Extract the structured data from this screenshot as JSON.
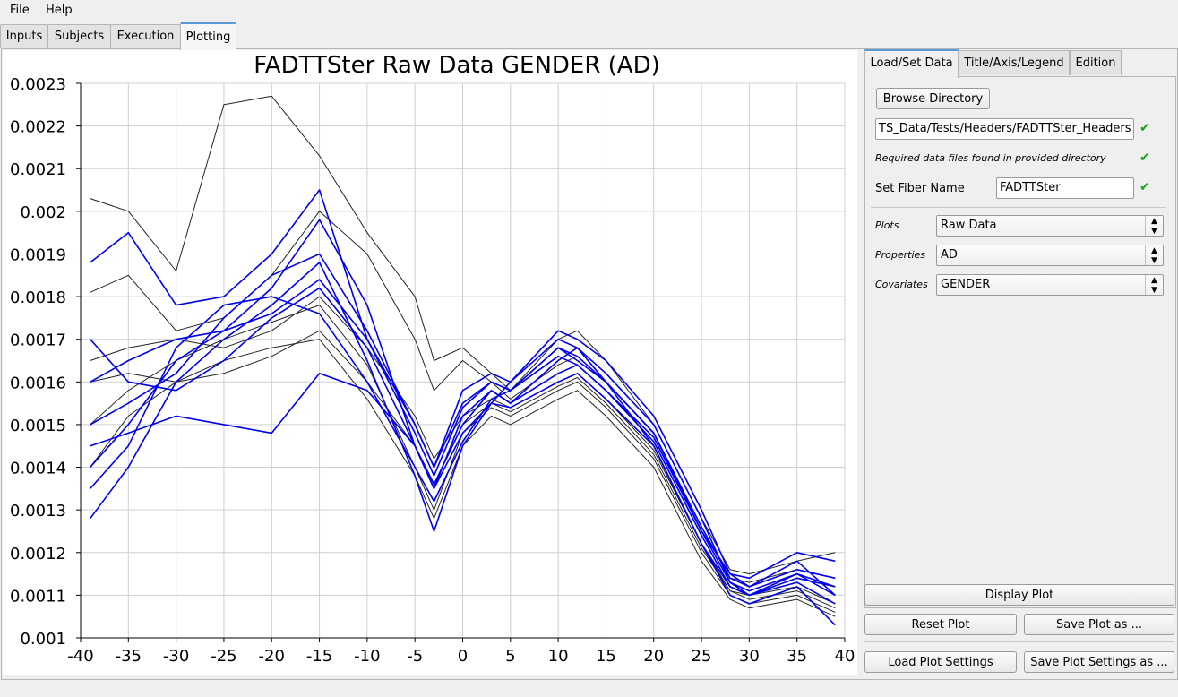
{
  "menubar": {
    "file": "File",
    "help": "Help"
  },
  "main_tabs": [
    "Inputs",
    "Subjects",
    "Execution",
    "Plotting"
  ],
  "right_tabs": [
    "Load/Set Data",
    "Title/Axis/Legend",
    "Edition"
  ],
  "load_panel": {
    "browse_button": "Browse Directory",
    "directory_value": "TS_Data/Tests/Headers/FADTTSter_Headers",
    "required_found_text": "Required data files found in provided directory",
    "fiber_name_label": "Set Fiber Name",
    "fiber_name_value": "FADTTSter",
    "plots_label": "Plots",
    "plots_value": "Raw Data",
    "properties_label": "Properties",
    "properties_value": "AD",
    "covariates_label": "Covariates",
    "covariates_value": "GENDER"
  },
  "buttons": {
    "display_plot": "Display Plot",
    "reset_plot": "Reset Plot",
    "save_plot_as": "Save Plot as ...",
    "load_plot_settings": "Load Plot Settings",
    "save_plot_settings_as": "Save Plot Settings as ..."
  },
  "colors": {
    "tab_accent": "#5b9bd5",
    "check_green": "#1aa31a",
    "series_blue": "#0000ee",
    "series_black": "#222222"
  },
  "chart_data": {
    "type": "line",
    "title": "FADTTSter Raw Data GENDER (AD)",
    "xlabel": "",
    "ylabel": "",
    "xlim": [
      -40,
      40
    ],
    "ylim": [
      0.001,
      0.0023
    ],
    "x_ticks": [
      "-40",
      "-35",
      "-30",
      "-25",
      "-20",
      "-15",
      "-10",
      "-5",
      "0",
      "5",
      "10",
      "15",
      "20",
      "25",
      "30",
      "35",
      "40"
    ],
    "y_ticks": [
      "0.001",
      "0.0011",
      "0.0012",
      "0.0013",
      "0.0014",
      "0.0015",
      "0.0016",
      "0.0017",
      "0.0018",
      "0.0019",
      "0.002",
      "0.0021",
      "0.0022",
      "0.0023"
    ],
    "grid": true,
    "x": [
      -39,
      -35,
      -30,
      -25,
      -20,
      -15,
      -10,
      -5,
      -3,
      0,
      3,
      5,
      10,
      12,
      15,
      20,
      25,
      28,
      30,
      35,
      39
    ],
    "series": [
      {
        "group": 1,
        "color": "#0000ee",
        "values": [
          0.00188,
          0.00195,
          0.00178,
          0.0018,
          0.0019,
          0.00205,
          0.0017,
          0.0015,
          0.0014,
          0.00155,
          0.0016,
          0.00158,
          0.00168,
          0.00165,
          0.0016,
          0.00148,
          0.00125,
          0.00115,
          0.00112,
          0.00118,
          0.0011
        ]
      },
      {
        "group": 1,
        "color": "#0000ee",
        "values": [
          0.0014,
          0.0015,
          0.00165,
          0.00172,
          0.00182,
          0.00198,
          0.00178,
          0.00145,
          0.00135,
          0.00152,
          0.00158,
          0.00155,
          0.00165,
          0.00168,
          0.00162,
          0.0015,
          0.00128,
          0.00113,
          0.0011,
          0.00115,
          0.00112
        ]
      },
      {
        "group": 1,
        "color": "#0000ee",
        "values": [
          0.00128,
          0.0014,
          0.0016,
          0.0017,
          0.00178,
          0.00188,
          0.00165,
          0.00138,
          0.00125,
          0.00145,
          0.00155,
          0.0016,
          0.0017,
          0.00168,
          0.0016,
          0.00145,
          0.00122,
          0.0011,
          0.00108,
          0.00112,
          0.00103
        ]
      },
      {
        "group": 1,
        "color": "#0000ee",
        "values": [
          0.0015,
          0.00155,
          0.00162,
          0.00175,
          0.00185,
          0.0019,
          0.00172,
          0.0015,
          0.0014,
          0.00158,
          0.00162,
          0.0016,
          0.00172,
          0.0017,
          0.00165,
          0.00152,
          0.0013,
          0.00115,
          0.00114,
          0.0012,
          0.00118
        ]
      },
      {
        "group": 1,
        "color": "#0000ee",
        "values": [
          0.0017,
          0.0016,
          0.00158,
          0.00165,
          0.00175,
          0.00182,
          0.00168,
          0.00145,
          0.00136,
          0.0015,
          0.00158,
          0.00155,
          0.00162,
          0.00164,
          0.00158,
          0.00146,
          0.00124,
          0.00112,
          0.0011,
          0.00113,
          0.00108
        ]
      },
      {
        "group": 1,
        "color": "#0000ee",
        "values": [
          0.00145,
          0.00148,
          0.00152,
          0.0015,
          0.00148,
          0.00162,
          0.00158,
          0.00145,
          0.00135,
          0.00148,
          0.00155,
          0.00154,
          0.0016,
          0.00162,
          0.00156,
          0.00145,
          0.00122,
          0.00112,
          0.0011,
          0.00114,
          0.00112
        ]
      },
      {
        "group": 1,
        "color": "#0000ee",
        "values": [
          0.00135,
          0.00145,
          0.00168,
          0.00178,
          0.0018,
          0.00176,
          0.0016,
          0.0014,
          0.00132,
          0.00146,
          0.00156,
          0.00158,
          0.00168,
          0.00166,
          0.0016,
          0.00148,
          0.00126,
          0.00114,
          0.00112,
          0.00116,
          0.00114
        ]
      },
      {
        "group": 1,
        "color": "#0000ee",
        "values": [
          0.0016,
          0.00165,
          0.0017,
          0.00172,
          0.00176,
          0.00184,
          0.0017,
          0.00148,
          0.00138,
          0.00154,
          0.0016,
          0.00158,
          0.00166,
          0.00164,
          0.00158,
          0.00147,
          0.00125,
          0.00113,
          0.00111,
          0.00115,
          0.0011
        ]
      },
      {
        "group": 2,
        "color": "#222222",
        "values": [
          0.00203,
          0.002,
          0.00186,
          0.00225,
          0.00227,
          0.00213,
          0.00195,
          0.0018,
          0.00165,
          0.00168,
          0.00162,
          0.00158,
          0.0017,
          0.00172,
          0.00165,
          0.0015,
          0.00128,
          0.00116,
          0.00115,
          0.00118,
          0.0012
        ]
      },
      {
        "group": 2,
        "color": "#222222",
        "values": [
          0.00181,
          0.00185,
          0.00172,
          0.00175,
          0.00185,
          0.002,
          0.0019,
          0.0017,
          0.00158,
          0.00165,
          0.0016,
          0.00156,
          0.00164,
          0.00166,
          0.0016,
          0.00148,
          0.00126,
          0.00114,
          0.00113,
          0.00116,
          0.00114
        ]
      },
      {
        "group": 2,
        "color": "#222222",
        "values": [
          0.00165,
          0.00168,
          0.0017,
          0.00168,
          0.00172,
          0.0018,
          0.00168,
          0.00152,
          0.00142,
          0.00152,
          0.00156,
          0.00154,
          0.0016,
          0.00162,
          0.00156,
          0.00144,
          0.00122,
          0.00111,
          0.0011,
          0.00112,
          0.00108
        ]
      },
      {
        "group": 2,
        "color": "#222222",
        "values": [
          0.0015,
          0.00158,
          0.00165,
          0.0017,
          0.00174,
          0.00178,
          0.00164,
          0.0014,
          0.0013,
          0.00148,
          0.00154,
          0.00152,
          0.00158,
          0.0016,
          0.00154,
          0.00142,
          0.0012,
          0.0011,
          0.00108,
          0.0011,
          0.00106
        ]
      },
      {
        "group": 2,
        "color": "#222222",
        "values": [
          0.0016,
          0.00162,
          0.0016,
          0.00162,
          0.00166,
          0.00172,
          0.0016,
          0.00145,
          0.00136,
          0.0015,
          0.00155,
          0.00153,
          0.00159,
          0.00161,
          0.00155,
          0.00143,
          0.00121,
          0.00111,
          0.00109,
          0.00111,
          0.00107
        ]
      },
      {
        "group": 2,
        "color": "#222222",
        "values": [
          0.0014,
          0.00152,
          0.0016,
          0.00165,
          0.00168,
          0.0017,
          0.00156,
          0.00138,
          0.00128,
          0.00145,
          0.00152,
          0.0015,
          0.00156,
          0.00158,
          0.00152,
          0.0014,
          0.00118,
          0.00109,
          0.00107,
          0.00109,
          0.00105
        ]
      }
    ]
  }
}
